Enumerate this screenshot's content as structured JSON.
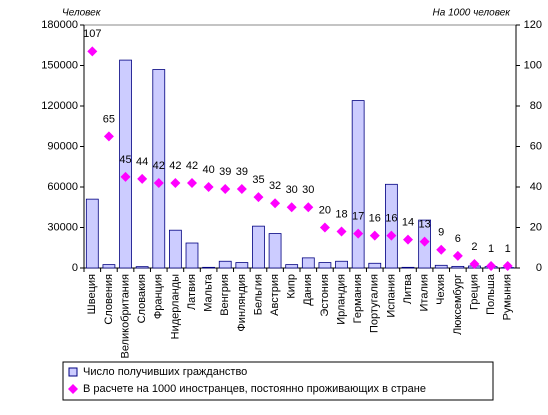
{
  "chart_data": {
    "type": "bar",
    "y_axis_title": "Человек",
    "y2_axis_title": "На 1000 человек",
    "categories": [
      "Швеция",
      "Словения",
      "Великобритания",
      "Словакия",
      "Франция",
      "Нидерланды",
      "Латвия",
      "Мальта",
      "Венгрия",
      "Финляндия",
      "Бельгия",
      "Австрия",
      "Кипр",
      "Дания",
      "Эстония",
      "Ирландия",
      "Германия",
      "Португалия",
      "Испания",
      "Литва",
      "Италия",
      "Чехия",
      "Люксембург",
      "Греция",
      "Польша",
      "Румыния"
    ],
    "series": [
      {
        "name": "Число получивших гражданство",
        "color": "#ccccff",
        "type": "bar",
        "values": [
          51000,
          2500,
          154000,
          1000,
          147000,
          28000,
          18500,
          500,
          5000,
          4000,
          31000,
          25500,
          2500,
          7500,
          4000,
          5000,
          124000,
          3500,
          62000,
          500,
          35500,
          2000,
          1200,
          1500,
          1000,
          300
        ]
      },
      {
        "name": "В расчете на 1000 иностранцев, постоянно проживающих в стране",
        "color": "#ff00ff",
        "type": "scatter",
        "axis": "y2",
        "values": [
          107,
          65,
          45,
          44,
          42,
          42,
          42,
          40,
          39,
          39,
          35,
          32,
          30,
          30,
          20,
          18,
          17,
          16,
          16,
          14,
          13,
          9,
          6,
          2,
          1,
          1
        ]
      }
    ],
    "ylim": [
      0,
      180000
    ],
    "yticks": [
      0,
      30000,
      60000,
      90000,
      120000,
      150000,
      180000
    ],
    "y2lim": [
      0,
      120
    ],
    "y2ticks": [
      0,
      20,
      40,
      60,
      80,
      100,
      120
    ],
    "legend": "bottom"
  }
}
